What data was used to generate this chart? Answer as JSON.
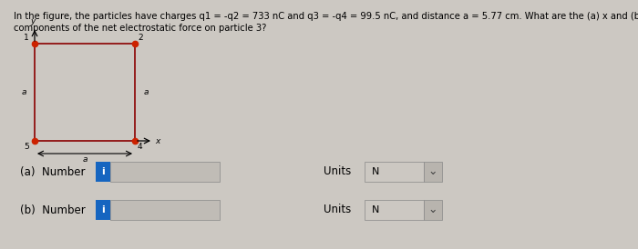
{
  "bg_color": "#ccc8c2",
  "text_color": "#000000",
  "title_line1": "In the figure, the particles have charges q1 = -q2 = 733 nC and q3 = -q4 = 99.5 nC, and distance a = 5.77 cm. What are the (a) x and (b) y",
  "title_line2": "components of the net electrostatic force on particle 3?",
  "fig_width": 7.0,
  "fig_height": 2.74,
  "dpi": 100,
  "square_color": "#8b0000",
  "dot_color": "#cc2200",
  "blue_btn_color": "#1565c0",
  "input_bg": "#c0bcb6",
  "units_bg": "#ccc8c2",
  "drop_bg": "#b8b4ae",
  "answer_a_label": "(a)  Number",
  "answer_b_label": "(b)  Number",
  "units_label": "Units",
  "units_value": "N"
}
